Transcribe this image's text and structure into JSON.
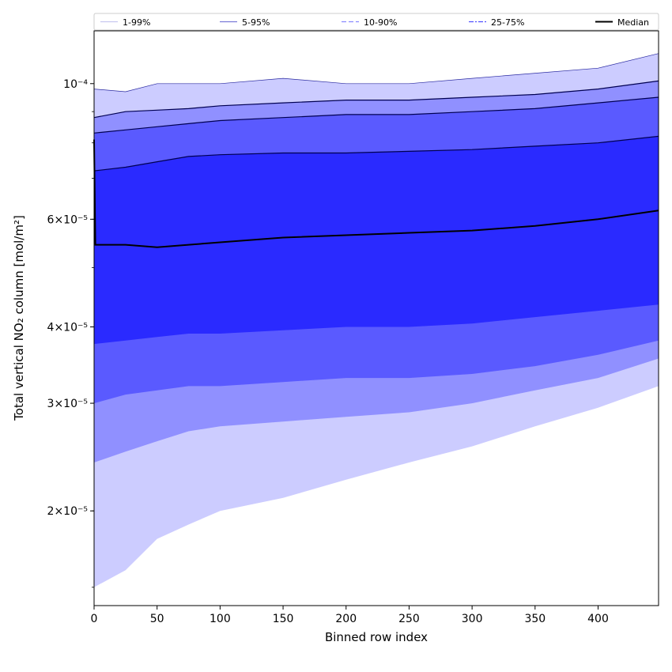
{
  "chart_data": {
    "type": "area",
    "xlabel": "Binned row index",
    "ylabel": "Total vertical NO₂ column [mol/m²]",
    "xlim": [
      0,
      448
    ],
    "ylim": [
      1.4e-05,
      0.000122
    ],
    "yscale": "log",
    "x_ticks": [
      0,
      50,
      100,
      150,
      200,
      250,
      300,
      350,
      400
    ],
    "y_ticks": [
      {
        "value": 2e-05,
        "label": "2×10⁻⁵"
      },
      {
        "value": 3e-05,
        "label": "3×10⁻⁵"
      },
      {
        "value": 4e-05,
        "label": "4×10⁻⁵"
      },
      {
        "value": 6e-05,
        "label": "6×10⁻⁵"
      },
      {
        "value": 0.0001,
        "label": "10⁻⁴"
      }
    ],
    "legend_position": "top",
    "legend": [
      {
        "label": "1-99%",
        "color": "#c8c8f0",
        "style": "solid"
      },
      {
        "label": "5-95%",
        "color": "#7a7ad8",
        "style": "solid"
      },
      {
        "label": "10-90%",
        "color": "#8a8aff",
        "style": "dashed"
      },
      {
        "label": "25-75%",
        "color": "#5050ff",
        "style": "dashdot"
      },
      {
        "label": "Median",
        "color": "#000000",
        "style": "solid"
      }
    ],
    "x": [
      0,
      25,
      50,
      75,
      100,
      150,
      200,
      250,
      300,
      350,
      400,
      448
    ],
    "bands": [
      {
        "name": "1-99%",
        "color": "#ccccff",
        "lower": [
          1.5e-05,
          1.6e-05,
          1.8e-05,
          1.9e-05,
          2e-05,
          2.1e-05,
          2.25e-05,
          2.4e-05,
          2.55e-05,
          2.75e-05,
          2.95e-05,
          3.2e-05
        ],
        "upper": [
          9.8e-05,
          9.7e-05,
          0.0001,
          0.0001,
          0.0001,
          0.000102,
          0.0001,
          0.0001,
          0.000102,
          0.000104,
          0.000106,
          0.000112
        ]
      },
      {
        "name": "5-95%",
        "color": "#9090ff",
        "lower": [
          2.4e-05,
          2.5e-05,
          2.6e-05,
          2.7e-05,
          2.75e-05,
          2.8e-05,
          2.85e-05,
          2.9e-05,
          3e-05,
          3.15e-05,
          3.3e-05,
          3.55e-05
        ],
        "upper": [
          8.8e-05,
          9e-05,
          9.05e-05,
          9.1e-05,
          9.2e-05,
          9.3e-05,
          9.4e-05,
          9.4e-05,
          9.5e-05,
          9.6e-05,
          9.8e-05,
          0.000101
        ]
      },
      {
        "name": "10-90%",
        "color": "#5a5aff",
        "lower": [
          3e-05,
          3.1e-05,
          3.15e-05,
          3.2e-05,
          3.2e-05,
          3.25e-05,
          3.3e-05,
          3.3e-05,
          3.35e-05,
          3.45e-05,
          3.6e-05,
          3.8e-05
        ],
        "upper": [
          8.3e-05,
          8.4e-05,
          8.5e-05,
          8.6e-05,
          8.7e-05,
          8.8e-05,
          8.9e-05,
          8.9e-05,
          9e-05,
          9.1e-05,
          9.3e-05,
          9.5e-05
        ]
      },
      {
        "name": "25-75%",
        "color": "#2a2aff",
        "lower": [
          3.75e-05,
          3.8e-05,
          3.85e-05,
          3.9e-05,
          3.9e-05,
          3.95e-05,
          4e-05,
          4e-05,
          4.05e-05,
          4.15e-05,
          4.25e-05,
          4.35e-05
        ],
        "upper": [
          7.2e-05,
          7.3e-05,
          7.45e-05,
          7.6e-05,
          7.65e-05,
          7.7e-05,
          7.7e-05,
          7.75e-05,
          7.8e-05,
          7.9e-05,
          8e-05,
          8.2e-05
        ]
      }
    ],
    "median": {
      "name": "Median",
      "color": "#000000",
      "x": [
        0,
        1,
        25,
        50,
        75,
        100,
        150,
        200,
        250,
        300,
        350,
        400,
        448
      ],
      "y": [
        8.1e-05,
        5.45e-05,
        5.45e-05,
        5.4e-05,
        5.45e-05,
        5.5e-05,
        5.6e-05,
        5.65e-05,
        5.7e-05,
        5.75e-05,
        5.85e-05,
        6e-05,
        6.2e-05
      ]
    }
  }
}
